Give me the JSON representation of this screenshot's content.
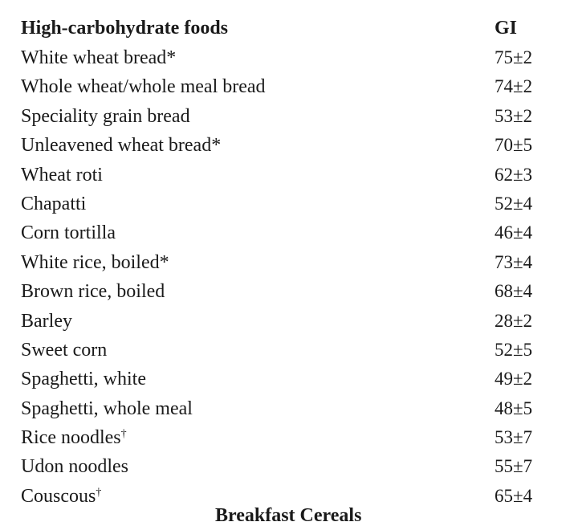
{
  "header": {
    "food_label": "High-carbohydrate foods",
    "gi_label": "GI"
  },
  "rows": [
    {
      "food": "White wheat bread*",
      "mark": "",
      "gi": "75±2"
    },
    {
      "food": "Whole wheat/whole meal bread",
      "mark": "",
      "gi": "74±2"
    },
    {
      "food": "Speciality grain bread",
      "mark": "",
      "gi": "53±2"
    },
    {
      "food": "Unleavened wheat bread*",
      "mark": "",
      "gi": "70±5"
    },
    {
      "food": "Wheat roti",
      "mark": "",
      "gi": "62±3"
    },
    {
      "food": "Chapatti",
      "mark": "",
      "gi": "52±4"
    },
    {
      "food": "Corn tortilla",
      "mark": "",
      "gi": "46±4"
    },
    {
      "food": "White rice, boiled*",
      "mark": "",
      "gi": "73±4"
    },
    {
      "food": "Brown rice, boiled",
      "mark": "",
      "gi": "68±4"
    },
    {
      "food": "Barley",
      "mark": "",
      "gi": "28±2"
    },
    {
      "food": "Sweet corn",
      "mark": "",
      "gi": "52±5"
    },
    {
      "food": "Spaghetti, white",
      "mark": "",
      "gi": "49±2"
    },
    {
      "food": "Spaghetti, whole meal",
      "mark": "",
      "gi": "48±5"
    },
    {
      "food": "Rice noodles",
      "mark": "†",
      "gi": "53±7"
    },
    {
      "food": "Udon noodles",
      "mark": "",
      "gi": "55±7"
    },
    {
      "food": "Couscous",
      "mark": "†",
      "gi": "65±4"
    }
  ],
  "next_section_partial": "Breakfast Cereals"
}
